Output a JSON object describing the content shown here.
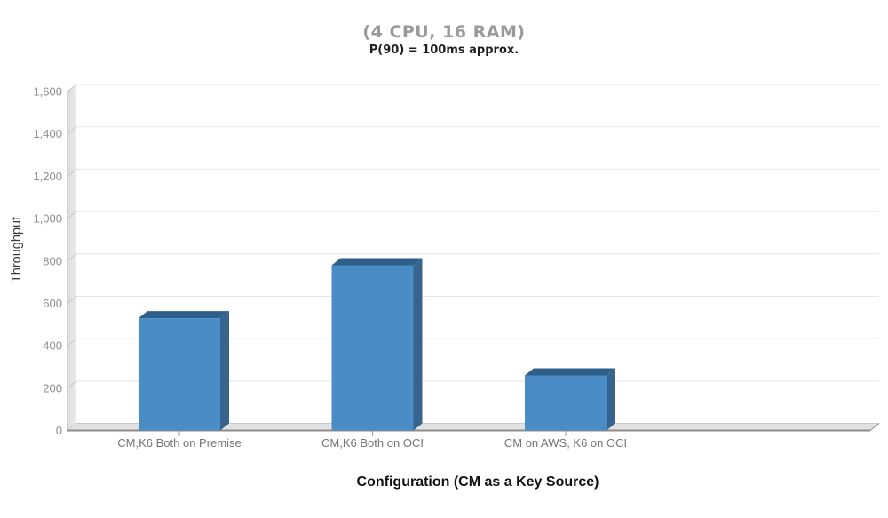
{
  "chart_data": {
    "type": "bar",
    "style": "3d-column",
    "title": "(4 CPU, 16 RAM)",
    "subtitle": "P(90) = 100ms approx.",
    "xlabel": "Configuration (CM as a Key Source)",
    "ylabel": "Throughput",
    "categories": [
      "CM,K6 Both on Premise",
      "CM,K6 Both on OCI",
      "CM on AWS, K6 on OCI"
    ],
    "values": [
      530,
      780,
      260
    ],
    "ylim": [
      0,
      1600
    ],
    "y_tick_interval": 200,
    "y_ticks": [
      0,
      200,
      400,
      600,
      800,
      1000,
      1200,
      1400,
      1600
    ],
    "y_tick_labels": [
      "0",
      "200",
      "400",
      "600",
      "800",
      "1,000",
      "1,200",
      "1,400",
      "1,600"
    ],
    "grid": true,
    "legend": "none",
    "colors": {
      "bar_front": "#4a8cc6",
      "bar_top": "#2d5f8a",
      "bar_side": "#36648f",
      "title": "#9a9a9a",
      "subtitle": "#1f1f1f",
      "x_axis_title": "#111111",
      "y_axis_title": "#3a3a3a",
      "y_tick_label": "#8f8f8f",
      "category_label": "#757575",
      "gridline": "#e6e6e6",
      "wall_dark": "#dcdcdc",
      "wall_light": "#ececec",
      "wall_edge": "#c9c9c9",
      "floor": "#e1e1e1",
      "floor_back_edge": "#c9c9c9",
      "baseline": "#8d8d8d",
      "axis_tick": "#9e9e9e"
    }
  }
}
